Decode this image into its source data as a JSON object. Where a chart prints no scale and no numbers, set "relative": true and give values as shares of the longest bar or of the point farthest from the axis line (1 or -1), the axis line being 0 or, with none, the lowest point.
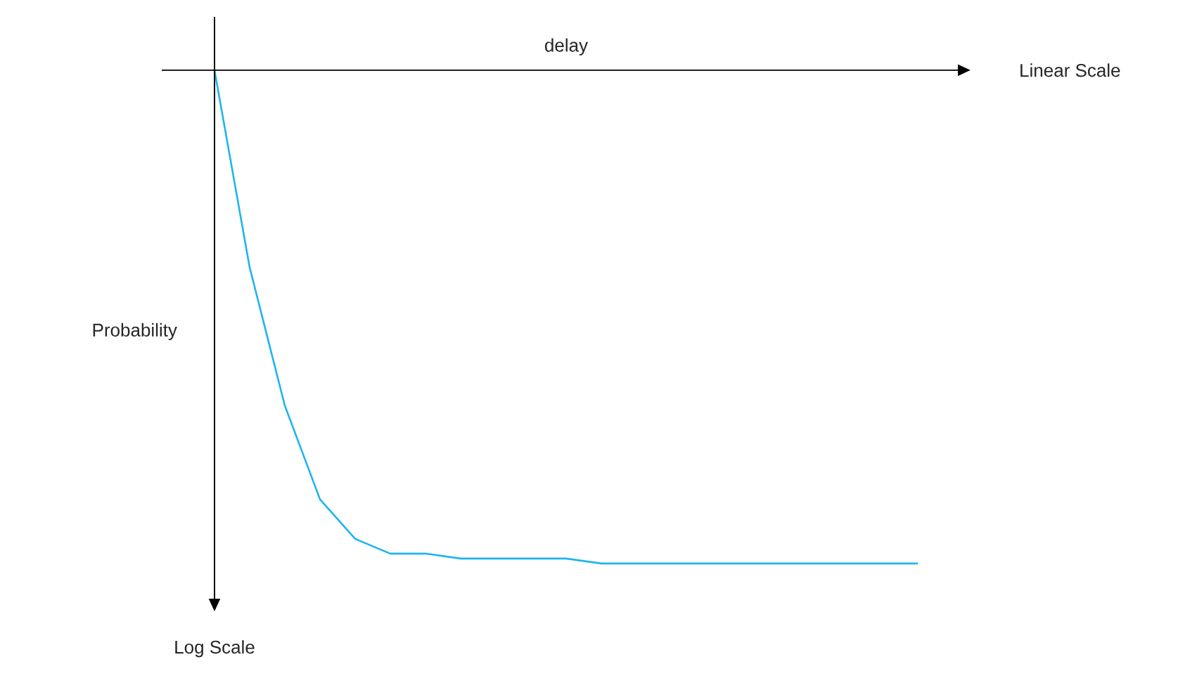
{
  "chart_data": {
    "type": "line",
    "relative": true,
    "xlabel": "delay",
    "ylabel": "Probability",
    "annotations": [
      "Linear Scale",
      "Log Scale"
    ],
    "categories": [
      null,
      null,
      null,
      null,
      null,
      null,
      null,
      null,
      null,
      null,
      null,
      null,
      null,
      null,
      null,
      null,
      null,
      null,
      null,
      null,
      null
    ],
    "series": [
      {
        "color": "#1eb4f0",
        "values": [
          0,
          -0.4,
          -0.68,
          -0.87,
          -0.95,
          -0.98,
          -0.98,
          -0.99,
          -0.99,
          -0.99,
          -0.99,
          -1,
          -1,
          -1,
          -1,
          -1,
          -1,
          -1,
          -1,
          -1,
          -1
        ]
      }
    ]
  }
}
